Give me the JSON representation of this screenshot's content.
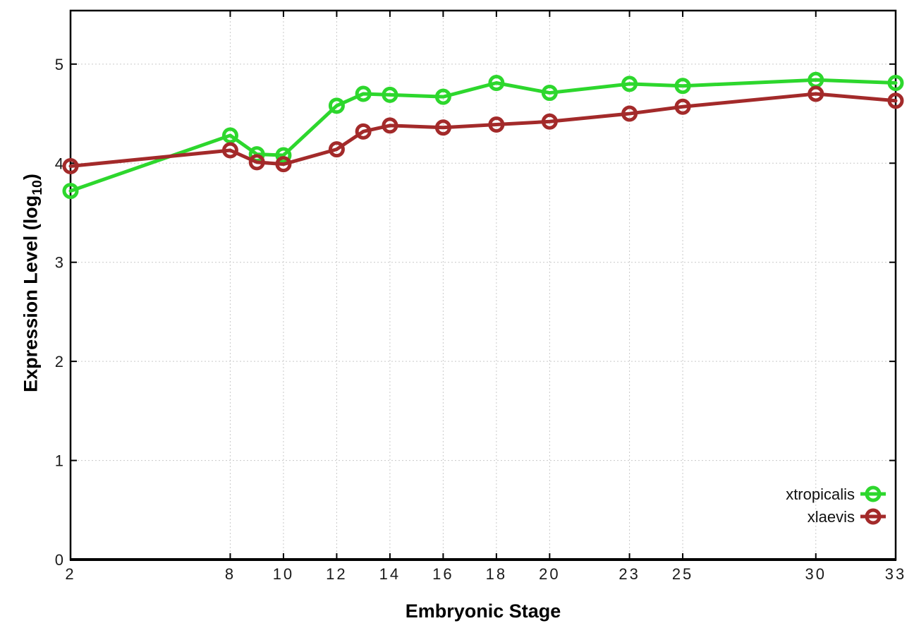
{
  "chart_data": {
    "type": "line",
    "title": "",
    "xlabel": "Embryonic Stage",
    "ylabel": "Expression Level (log10)",
    "ylabel_base": "Expression Level (log",
    "ylabel_sub": "10",
    "ylabel_close": ")",
    "x": [
      2,
      8,
      9,
      10,
      12,
      13,
      14,
      16,
      18,
      20,
      23,
      25,
      30,
      33
    ],
    "xticks": [
      2,
      8,
      10,
      12,
      14,
      16,
      18,
      20,
      23,
      25,
      30,
      33
    ],
    "yticks": [
      0,
      1,
      2,
      3,
      4,
      5
    ],
    "xlim": [
      2,
      33
    ],
    "ylim": [
      0,
      5.54
    ],
    "grid": true,
    "legend_position": "inside-bottom-right",
    "series": [
      {
        "name": "xtropicalis",
        "color": "#2dd72d",
        "marker": "open-circle",
        "values": [
          3.72,
          4.28,
          4.09,
          4.08,
          4.58,
          4.7,
          4.69,
          4.67,
          4.81,
          4.71,
          4.8,
          4.78,
          4.84,
          4.81
        ]
      },
      {
        "name": "xlaevis",
        "color": "#a32a2a",
        "marker": "open-circle",
        "values": [
          3.97,
          4.13,
          4.01,
          3.99,
          4.14,
          4.32,
          4.38,
          4.36,
          4.39,
          4.42,
          4.5,
          4.57,
          4.7,
          4.63
        ]
      }
    ]
  },
  "style_colors": {
    "frame": "#000000",
    "grid": "#c9c9c9",
    "tick_label": "#1a1a1a",
    "legend_text": "#111111",
    "background": "#ffffff"
  }
}
